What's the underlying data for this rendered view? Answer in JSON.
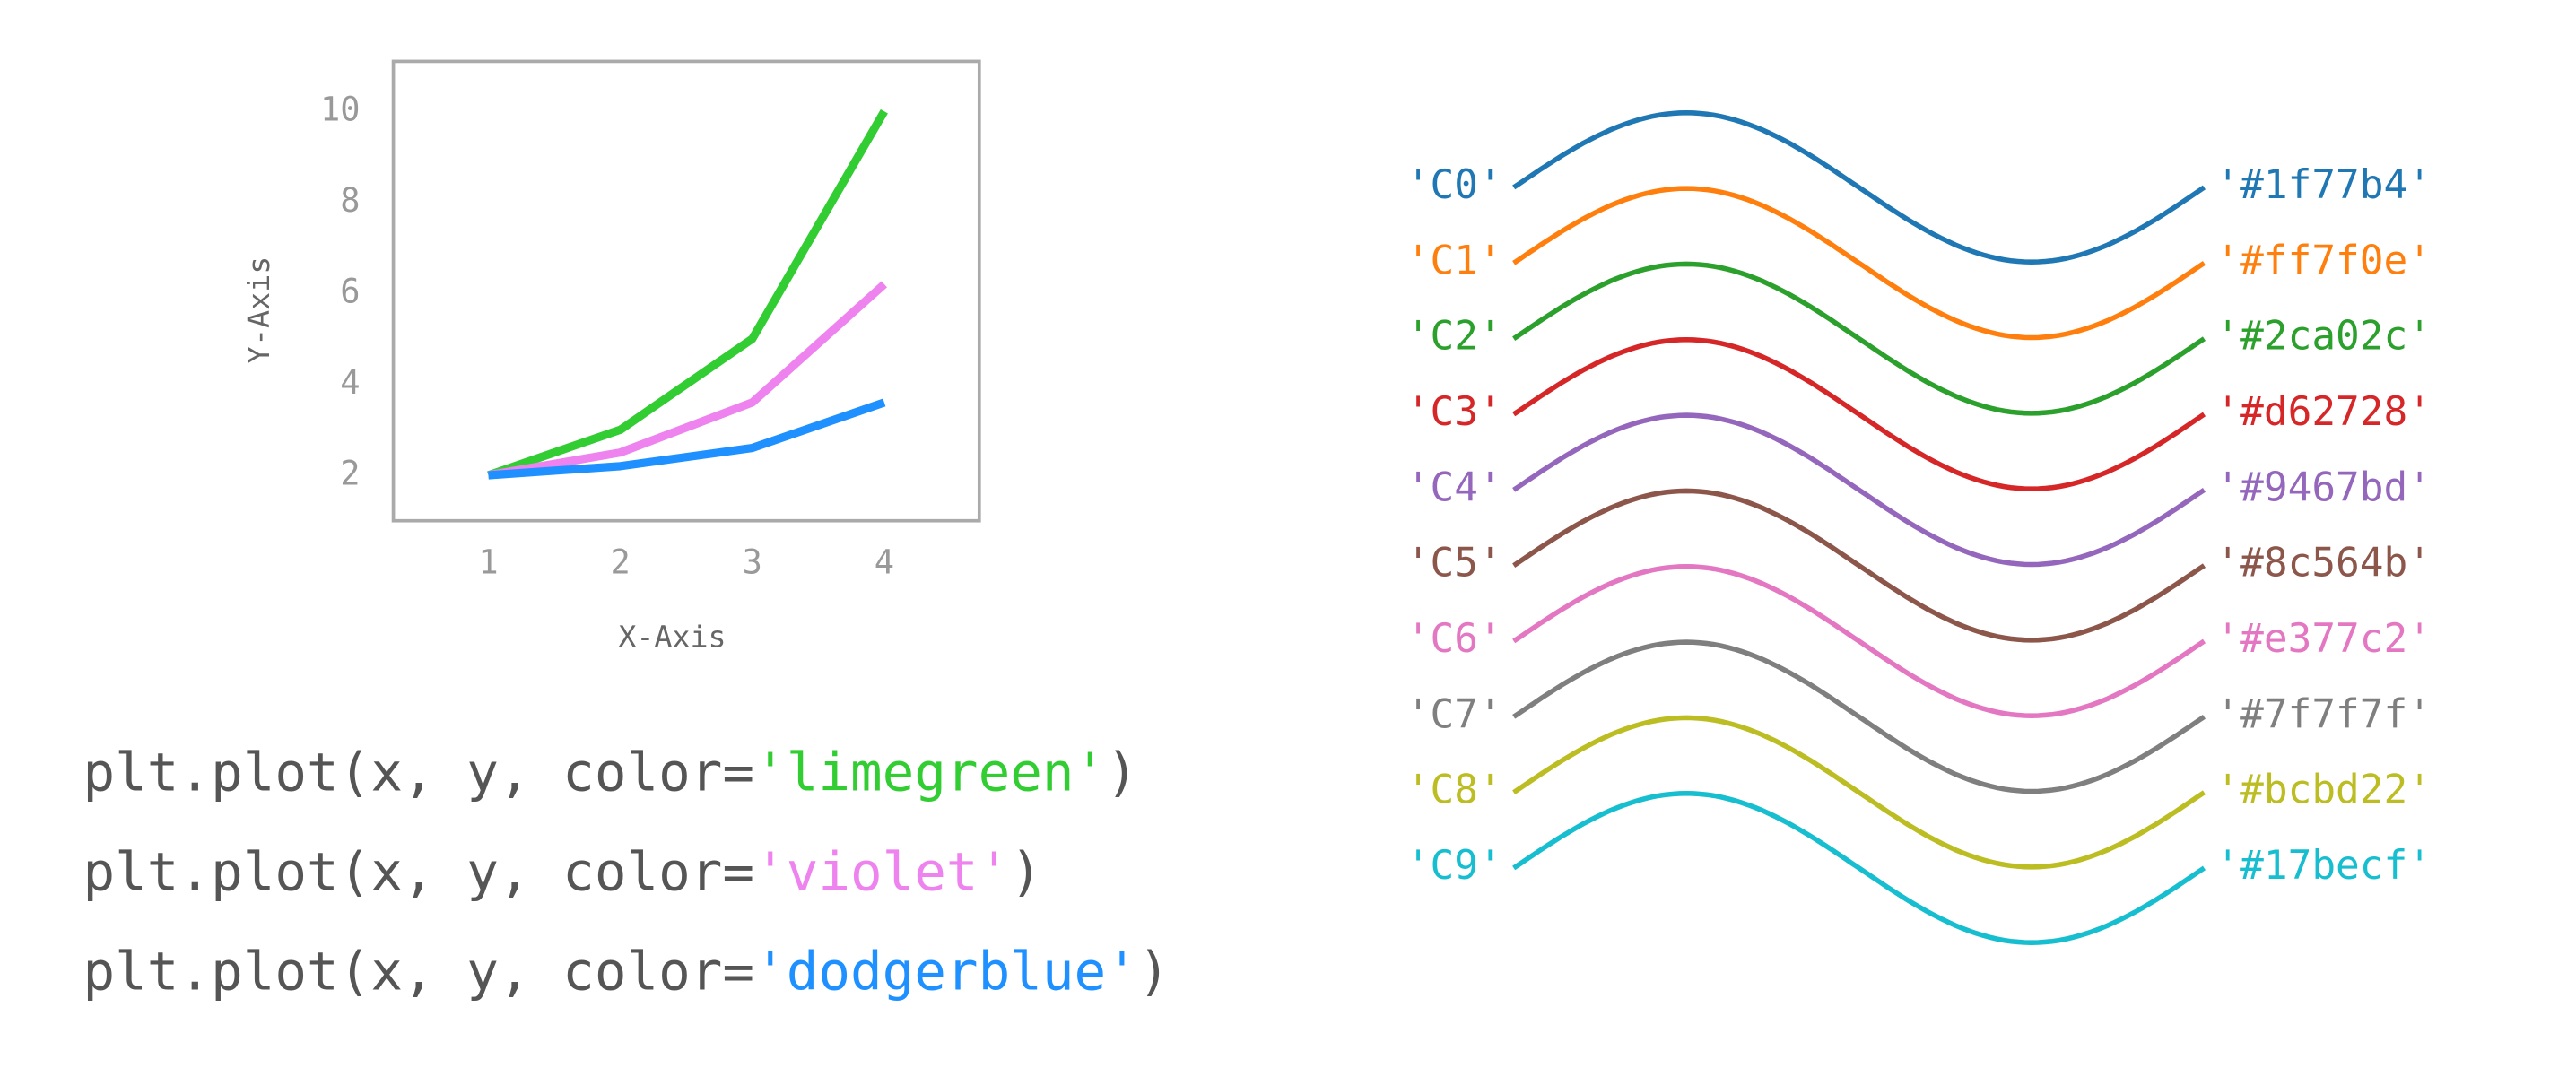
{
  "chart_data": {
    "type": "line",
    "x": [
      1,
      2,
      3,
      4
    ],
    "series": [
      {
        "color": "limegreen",
        "values": [
          2,
          3,
          5,
          10
        ]
      },
      {
        "color": "violet",
        "values": [
          2,
          2.5,
          3.6,
          6.2
        ]
      },
      {
        "color": "dodgerblue",
        "values": [
          2,
          2.2,
          2.6,
          3.6
        ]
      }
    ],
    "xlabel": "X-Axis",
    "ylabel": "Y-Axis",
    "xlim": [
      0.28,
      4.72
    ],
    "ylim": [
      1,
      11.1
    ],
    "xticks": [
      1,
      2,
      3,
      4
    ],
    "yticks": [
      2,
      4,
      6,
      8,
      10
    ],
    "grid": false
  },
  "code_lines": [
    {
      "prefix": "plt.plot(x, y, color=",
      "arg": "'limegreen'",
      "close": ")"
    },
    {
      "prefix": "plt.plot(x, y, color=",
      "arg": "'violet'",
      "close": ")"
    },
    {
      "prefix": "plt.plot(x, y, color=",
      "arg": "'dodgerblue'",
      "close": ")"
    }
  ],
  "color_cycle": [
    {
      "name": "'C0'",
      "hex": "'#1f77b4'",
      "color": "#1f77b4"
    },
    {
      "name": "'C1'",
      "hex": "'#ff7f0e'",
      "color": "#ff7f0e"
    },
    {
      "name": "'C2'",
      "hex": "'#2ca02c'",
      "color": "#2ca02c"
    },
    {
      "name": "'C3'",
      "hex": "'#d62728'",
      "color": "#d62728"
    },
    {
      "name": "'C4'",
      "hex": "'#9467bd'",
      "color": "#9467bd"
    },
    {
      "name": "'C5'",
      "hex": "'#8c564b'",
      "color": "#8c564b"
    },
    {
      "name": "'C6'",
      "hex": "'#e377c2'",
      "color": "#e377c2"
    },
    {
      "name": "'C7'",
      "hex": "'#7f7f7f'",
      "color": "#7f7f7f"
    },
    {
      "name": "'C8'",
      "hex": "'#bcbd22'",
      "color": "#bcbd22"
    },
    {
      "name": "'C9'",
      "hex": "'#17becf'",
      "color": "#17becf"
    }
  ]
}
